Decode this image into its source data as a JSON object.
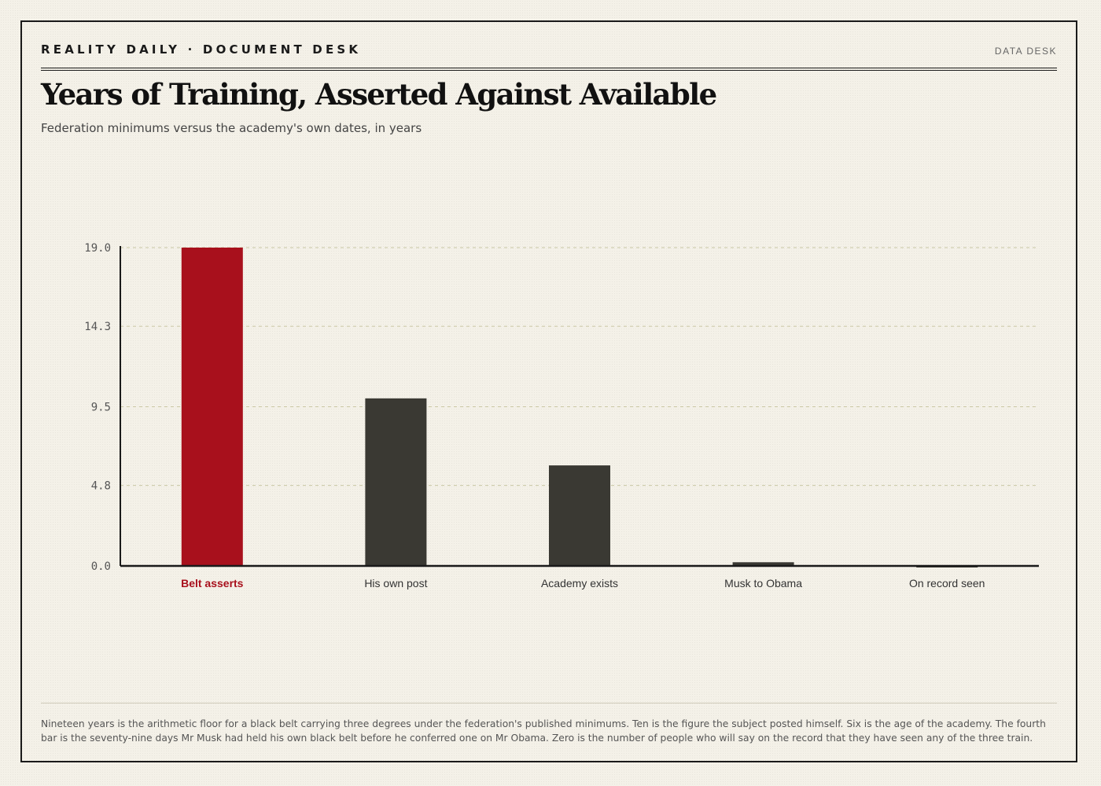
{
  "header": {
    "brand": "REALITY DAILY · DOCUMENT DESK",
    "desk": "DATA DESK"
  },
  "chart_data": {
    "type": "bar",
    "title": "Years of Training, Asserted Against Available",
    "subtitle": "Federation minimums versus the academy's own dates, in years",
    "categories": [
      "Belt asserts",
      "His own post",
      "Academy exists",
      "Musk to Obama",
      "On record seen"
    ],
    "values": [
      19,
      10,
      6,
      0.22,
      0
    ],
    "yticks": [
      "0.0",
      "4.8",
      "9.5",
      "14.3",
      "19.0"
    ],
    "ylim": [
      0,
      19
    ],
    "grid": true,
    "highlight_index": 0,
    "colors": {
      "highlight": "#a8101c",
      "bar": "#3a3933",
      "axis": "#1a1a1a",
      "grid": "#c9c6a3"
    }
  },
  "footnote": "Nineteen years is the arithmetic floor for a black belt carrying three degrees under the federation's published minimums. Ten is the figure the subject posted himself. Six is the age of the academy. The fourth bar is the seventy-nine days Mr Musk had held his own black belt before he conferred one on Mr Obama. Zero is the number of people who will say on the record that they have seen any of the three train."
}
